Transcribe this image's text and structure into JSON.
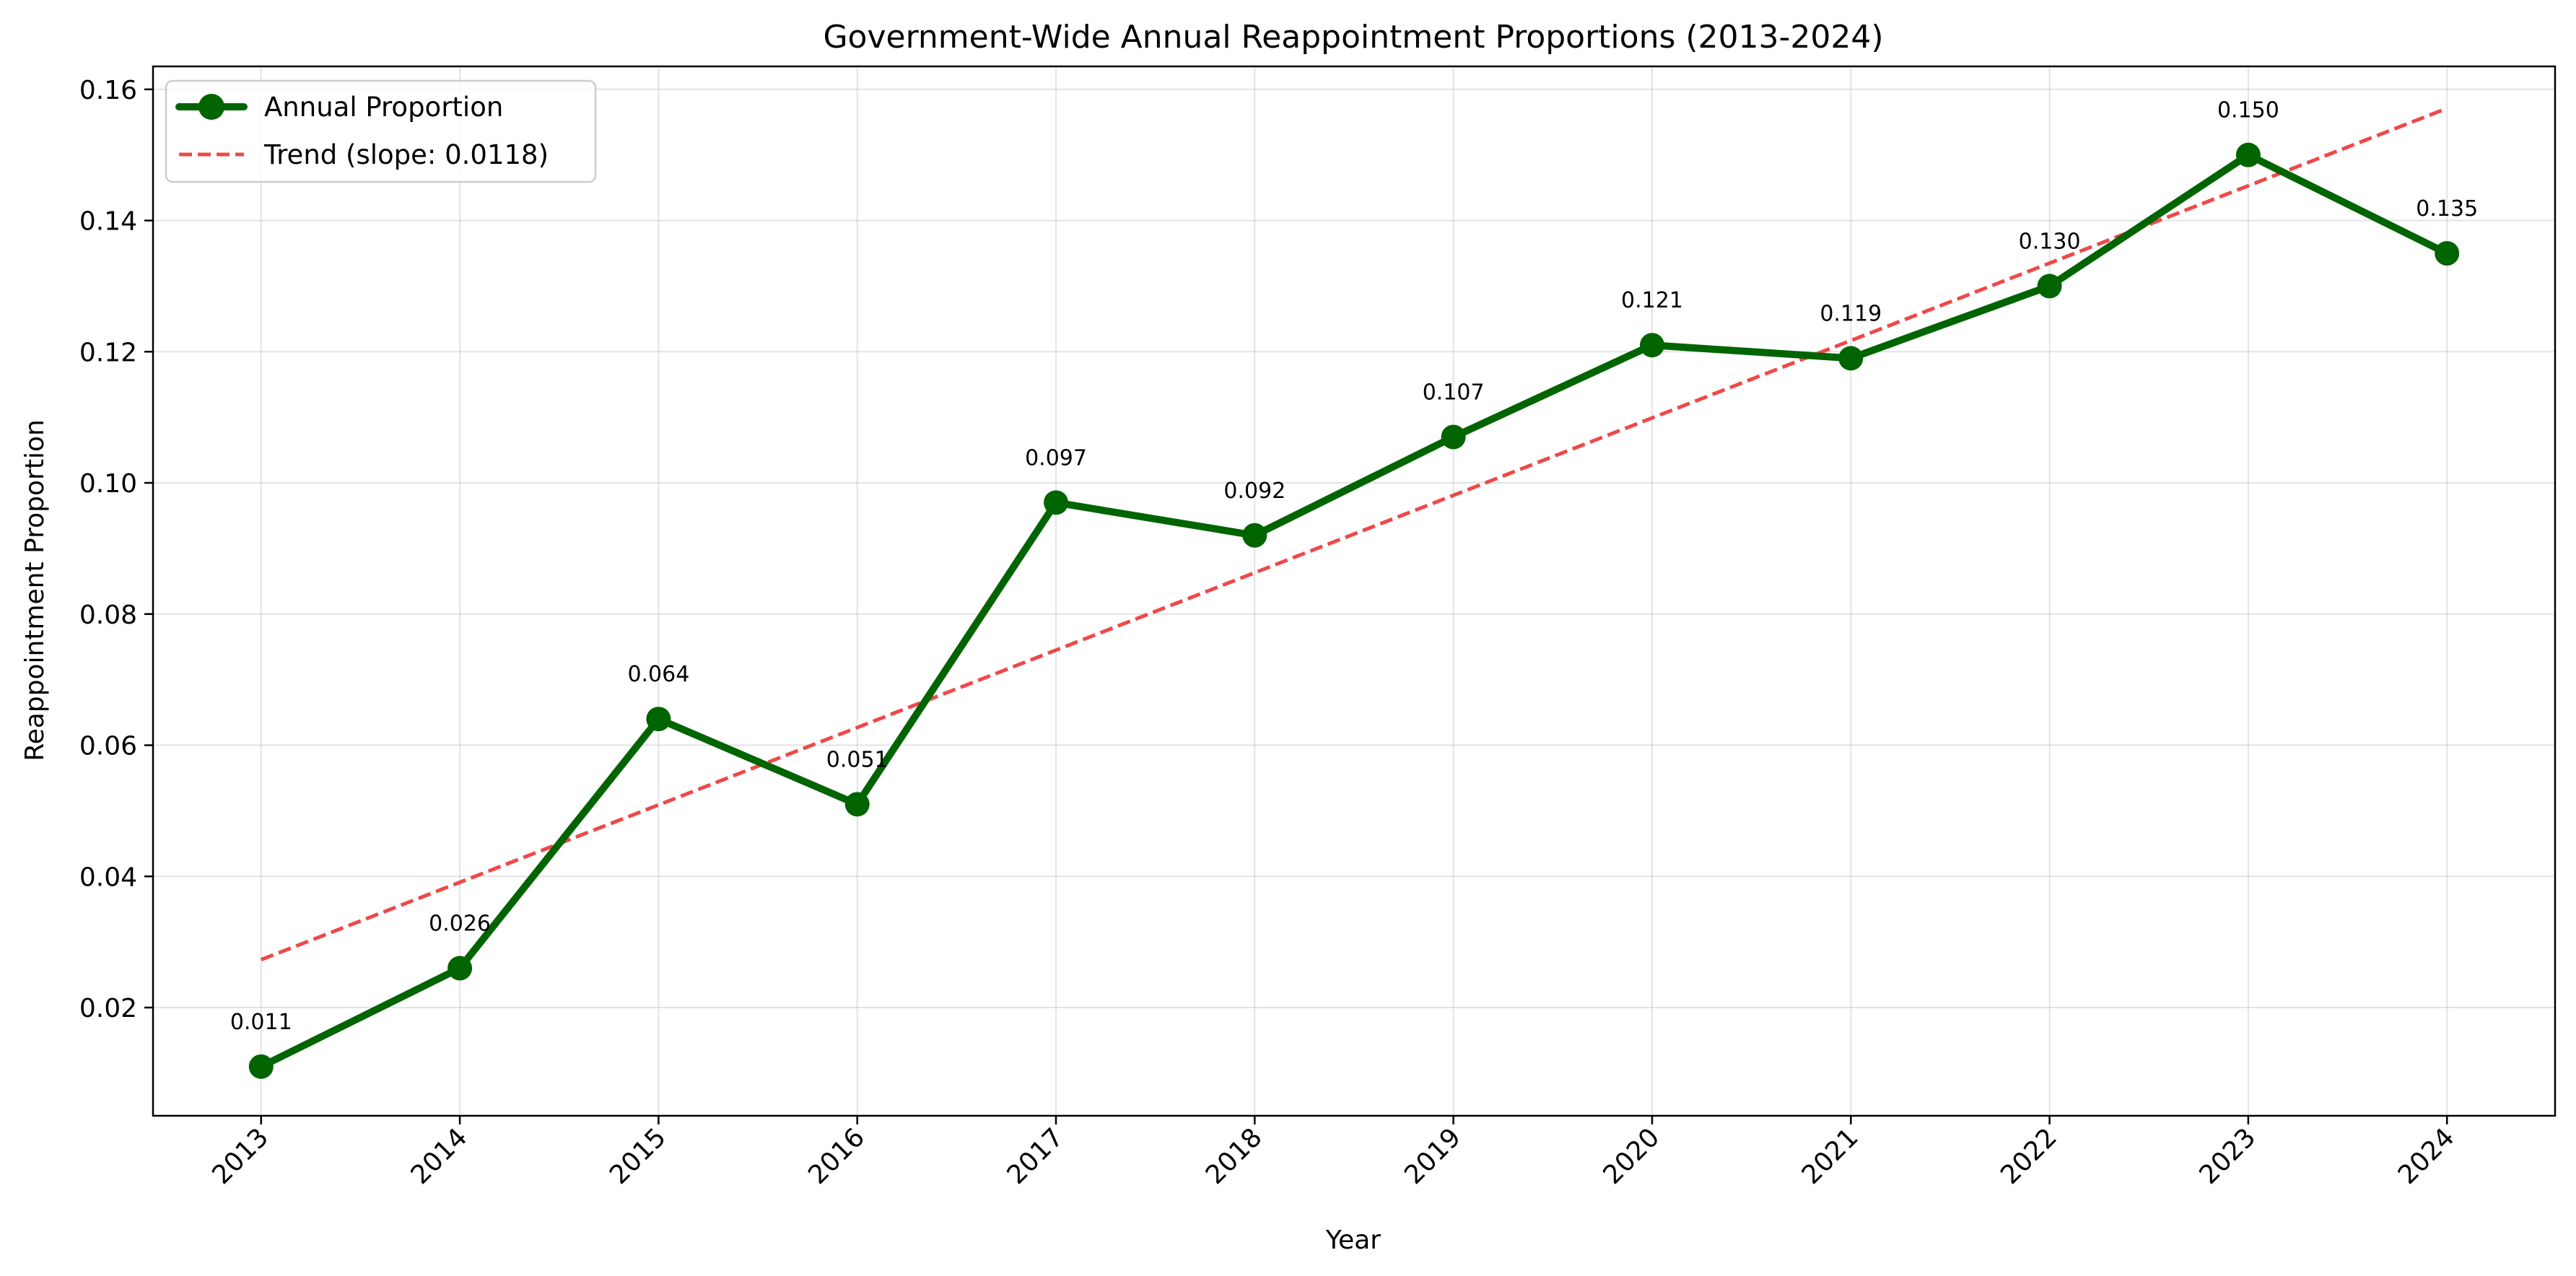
{
  "chart_data": {
    "type": "line",
    "title": "Government-Wide Annual Reappointment Proportions (2013-2024)",
    "xlabel": "Year",
    "ylabel": "Reappointment Proportion",
    "x": [
      "2013",
      "2014",
      "2015",
      "2016",
      "2017",
      "2018",
      "2019",
      "2020",
      "2021",
      "2022",
      "2023",
      "2024"
    ],
    "ylim": [
      0.0035,
      0.1635
    ],
    "yticks": [
      "0.02",
      "0.04",
      "0.06",
      "0.08",
      "0.10",
      "0.12",
      "0.14",
      "0.16"
    ],
    "grid": true,
    "legend_position": "top-left",
    "series": [
      {
        "name": "Annual Proportion",
        "values": [
          0.011,
          0.026,
          0.064,
          0.051,
          0.097,
          0.092,
          0.107,
          0.121,
          0.119,
          0.13,
          0.15,
          0.135
        ],
        "labels": [
          "0.011",
          "0.026",
          "0.064",
          "0.051",
          "0.097",
          "0.092",
          "0.107",
          "0.121",
          "0.119",
          "0.130",
          "0.150",
          "0.135"
        ],
        "color": "#006400",
        "style": "solid-with-markers"
      },
      {
        "name": "Trend (slope: 0.0118)",
        "values": [
          0.0273,
          0.0391,
          0.0509,
          0.0627,
          0.0745,
          0.0863,
          0.0981,
          0.1099,
          0.1217,
          0.1335,
          0.1453,
          0.1571
        ],
        "color": "#f04848",
        "style": "dashed"
      }
    ]
  }
}
